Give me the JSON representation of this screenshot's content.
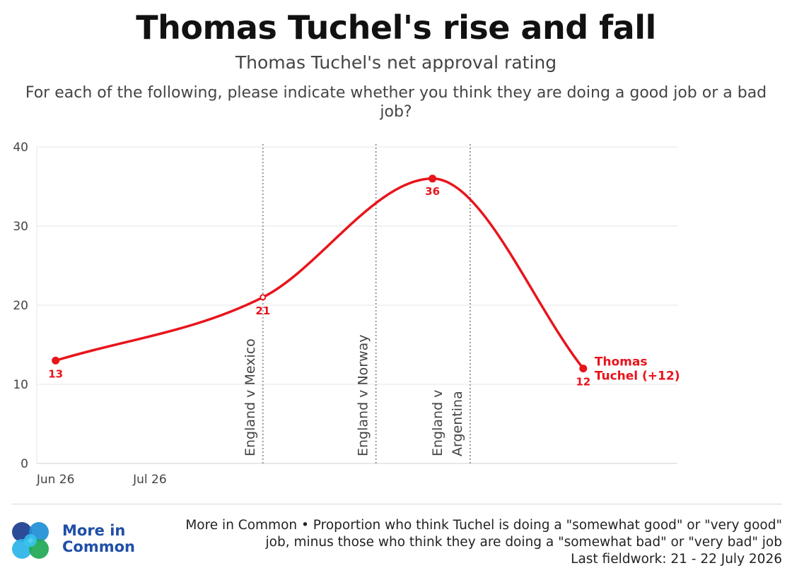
{
  "header": {
    "title": "Thomas Tuchel's rise and fall",
    "subtitle": "Thomas Tuchel's net approval rating",
    "question": "For each of the following, please indicate whether you think they are doing a good job or a bad job?"
  },
  "chart_data": {
    "type": "line",
    "title": "Thomas Tuchel's rise and fall",
    "subtitle": "Thomas Tuchel's net approval rating",
    "ylim": [
      0,
      40
    ],
    "y_ticks": [
      "0",
      "10",
      "20",
      "30",
      "40"
    ],
    "xlim": [
      "2026-06-23",
      "2026-07-27"
    ],
    "x_ticks": [
      {
        "date": "2026-06-24",
        "label": "Jun 26"
      },
      {
        "date": "2026-06-29",
        "label": "Jul 26"
      }
    ],
    "grid": "horizontal",
    "series": [
      {
        "name": "Thomas Tuchel (+12)",
        "color": "#e8141b",
        "points": [
          {
            "x": "2026-06-24",
            "y": 13,
            "label": "13"
          },
          {
            "x": "2026-07-05",
            "y": 21,
            "label": "21"
          },
          {
            "x": "2026-07-14",
            "y": 36,
            "label": "36"
          },
          {
            "x": "2026-07-22",
            "y": 12,
            "label": "12"
          }
        ],
        "end_label": [
          "Thomas",
          "Tuchel (+12)"
        ]
      }
    ],
    "annotations": [
      {
        "date": "2026-07-05",
        "lines": [
          "England v Mexico"
        ]
      },
      {
        "date": "2026-07-11",
        "lines": [
          "England v Norway"
        ]
      },
      {
        "date": "2026-07-16",
        "lines": [
          "England v",
          "Argentina"
        ]
      }
    ]
  },
  "footer": {
    "brand_line1": "More in",
    "brand_line2": "Common",
    "source_line1": "More in Common • Proportion who think Tuchel is doing a \"somewhat good\" or \"very good\"",
    "source_line2": "job, minus those who think they are doing a \"somewhat bad\" or \"very bad\" job",
    "source_line3": "Last fieldwork: 21 - 22 July 2026"
  },
  "colors": {
    "line": "#e8141b",
    "brand": "#1f4fa8",
    "logo": [
      "#1a3d8f",
      "#1e8fd6",
      "#2ab4e8",
      "#1fa855"
    ]
  }
}
